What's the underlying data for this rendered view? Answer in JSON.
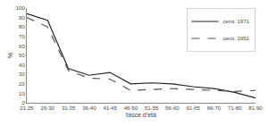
{
  "chart_data": {
    "type": "line",
    "categories": [
      "21-25",
      "26-30",
      "31-35",
      "36-40",
      "41-45",
      "46-50",
      "51-55",
      "56-60",
      "61-65",
      "66-70",
      "71-80",
      "81-90"
    ],
    "series": [
      {
        "name": "cens. 1971",
        "color": "#222222",
        "line_style": "solid",
        "values": [
          94,
          87,
          36,
          29,
          32,
          20,
          21,
          20,
          17,
          15,
          11,
          5
        ]
      },
      {
        "name": "cens. 1951",
        "color": "#555555",
        "line_style": "dashed",
        "values": [
          90,
          80,
          34,
          26,
          25,
          13,
          14,
          15,
          14,
          13,
          12,
          13
        ]
      }
    ],
    "xlabel": "fasce d’età",
    "ylabel": "%",
    "ylim": [
      0,
      100
    ],
    "yticks": [
      0,
      10,
      20,
      30,
      40,
      50,
      60,
      70,
      80,
      90,
      100
    ],
    "grid": false,
    "legend": "upper right"
  }
}
